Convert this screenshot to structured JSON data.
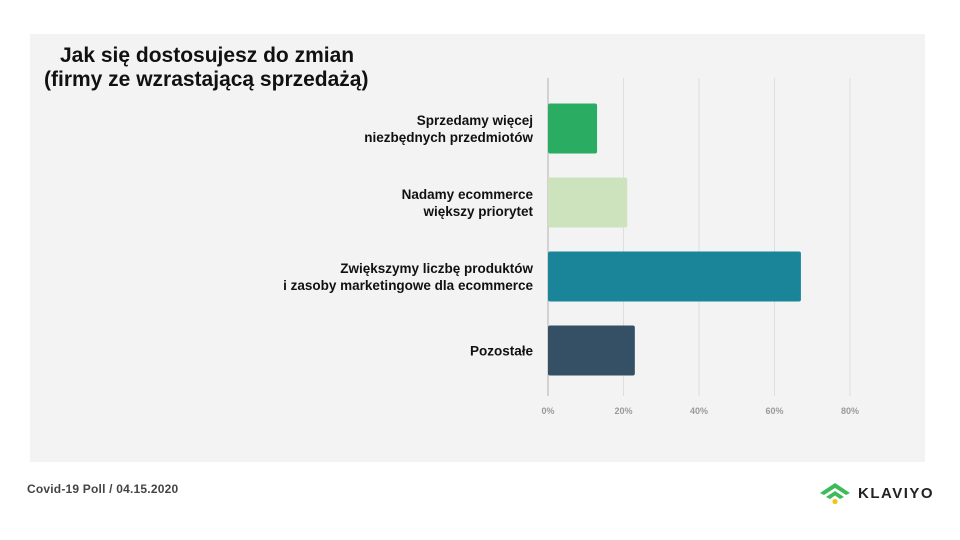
{
  "title_lines": [
    "Jak się dostosujesz do zmian",
    "(firmy ze wzrastającą sprzedażą)"
  ],
  "footer": {
    "poll": "Covid-19 Poll",
    "separator": "/",
    "date": "04.15.2020"
  },
  "brand": {
    "name": "KLAVIYO",
    "icon": "klaviyo-signal-icon"
  },
  "colors": {
    "panel_bg": "#f3f3f3",
    "grid": "#dedede",
    "axis_line": "#d2d2d2",
    "tick_label": "#9a9a9a",
    "brand_green": "#3dbb5a",
    "brand_yellow": "#f0c419"
  },
  "chart_data": {
    "type": "bar",
    "orientation": "horizontal",
    "title": "Jak się dostosujesz do zmian (firmy ze wzrastającą sprzedażą)",
    "categories": [
      [
        "Sprzedamy więcej",
        "niezbędnych przedmiotów"
      ],
      [
        "Nadamy ecommerce",
        "większy priorytet"
      ],
      [
        "Zwiększymy liczbę produktów",
        "i zasoby marketingowe dla ecommerce"
      ],
      [
        "Pozostałe"
      ]
    ],
    "values": [
      13,
      21,
      67,
      23
    ],
    "unit": "%",
    "bar_colors": [
      "#2aac62",
      "#cce3bd",
      "#1a8599",
      "#354f64"
    ],
    "xlim": [
      0,
      80
    ],
    "xticks": [
      0,
      20,
      40,
      60,
      80
    ],
    "xtick_labels": [
      "0%",
      "20%",
      "40%",
      "60%",
      "80%"
    ],
    "grid": true,
    "legend": "none"
  }
}
